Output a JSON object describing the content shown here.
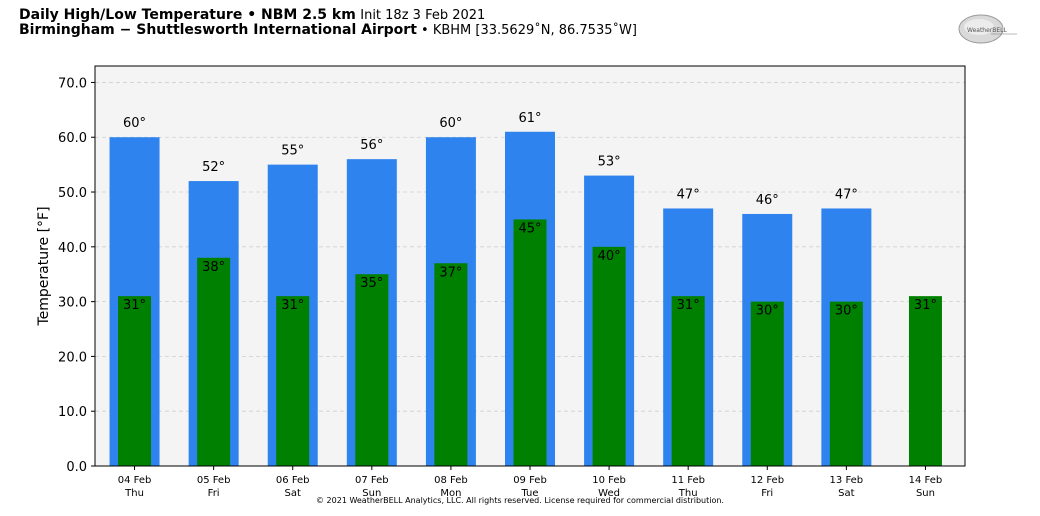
{
  "header": {
    "title_bold": "Daily High/Low Temperature • NBM 2.5 km",
    "title_init": "Init 18z 3 Feb 2021",
    "subtitle_bold": "Birmingham − Shuttlesworth International Airport",
    "subtitle_rest": " • KBHM [33.5629˚N, 86.7535˚W]"
  },
  "logo": {
    "text": "WeatherBELL",
    "icon": "weatherbell-logo"
  },
  "footer": {
    "copyright": "© 2021 WeatherBELL Analytics, LLC. All rights reserved. License required for commercial distribution."
  },
  "colors": {
    "high": "#2e83ef",
    "low": "#008000",
    "plot_bg": "#f4f4f4",
    "grid": "#cfcfcf"
  },
  "chart_data": {
    "type": "bar",
    "title": "Daily High/Low Temperature • NBM 2.5 km",
    "ylabel": "Temperature [°F]",
    "xlabel": "",
    "ylim": [
      0,
      73
    ],
    "yticks": [
      "0.0",
      "10.0",
      "20.0",
      "30.0",
      "40.0",
      "50.0",
      "60.0",
      "70.0"
    ],
    "ytick_values": [
      0,
      10,
      20,
      30,
      40,
      50,
      60,
      70
    ],
    "grid": true,
    "categories": [
      "04 Feb",
      "05 Feb",
      "06 Feb",
      "07 Feb",
      "08 Feb",
      "09 Feb",
      "10 Feb",
      "11 Feb",
      "12 Feb",
      "13 Feb",
      "14 Feb"
    ],
    "day_names": [
      "Thu",
      "Fri",
      "Sat",
      "Sun",
      "Mon",
      "Tue",
      "Wed",
      "Thu",
      "Fri",
      "Sat",
      "Sun"
    ],
    "series": [
      {
        "values": [
          60,
          52,
          55,
          56,
          60,
          61,
          53,
          47,
          46,
          47,
          null
        ],
        "labels": [
          "60°",
          "52°",
          "55°",
          "56°",
          "60°",
          "61°",
          "53°",
          "47°",
          "46°",
          "47°",
          ""
        ]
      },
      {
        "values": [
          31,
          38,
          31,
          35,
          37,
          45,
          40,
          31,
          30,
          30,
          31
        ],
        "labels": [
          "31°",
          "38°",
          "31°",
          "35°",
          "37°",
          "45°",
          "40°",
          "31°",
          "30°",
          "30°",
          "31°"
        ]
      }
    ]
  }
}
